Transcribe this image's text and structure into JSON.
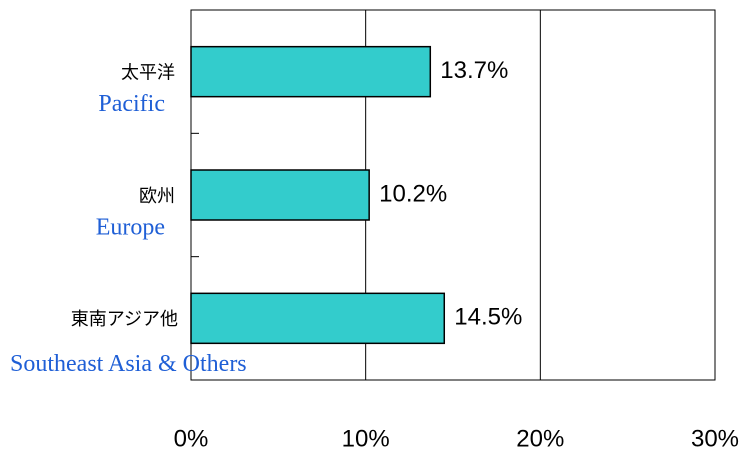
{
  "chart_data": {
    "type": "bar",
    "orientation": "horizontal",
    "categories": [
      "太平洋",
      "欧州",
      "東南アジア他"
    ],
    "categories_en": [
      "Pacific",
      "Europe",
      "Southeast Asia & Others"
    ],
    "values": [
      13.7,
      10.2,
      14.5
    ],
    "value_labels": [
      "13.7%",
      "10.2%",
      "14.5%"
    ],
    "color": "#33cccc",
    "xlim": [
      0,
      30
    ],
    "xticks": [
      {
        "value": 0,
        "label": "0%"
      },
      {
        "value": 10,
        "label": "10%"
      },
      {
        "value": 20,
        "label": "20%"
      },
      {
        "value": 30,
        "label": "30%"
      }
    ],
    "grid": true
  }
}
